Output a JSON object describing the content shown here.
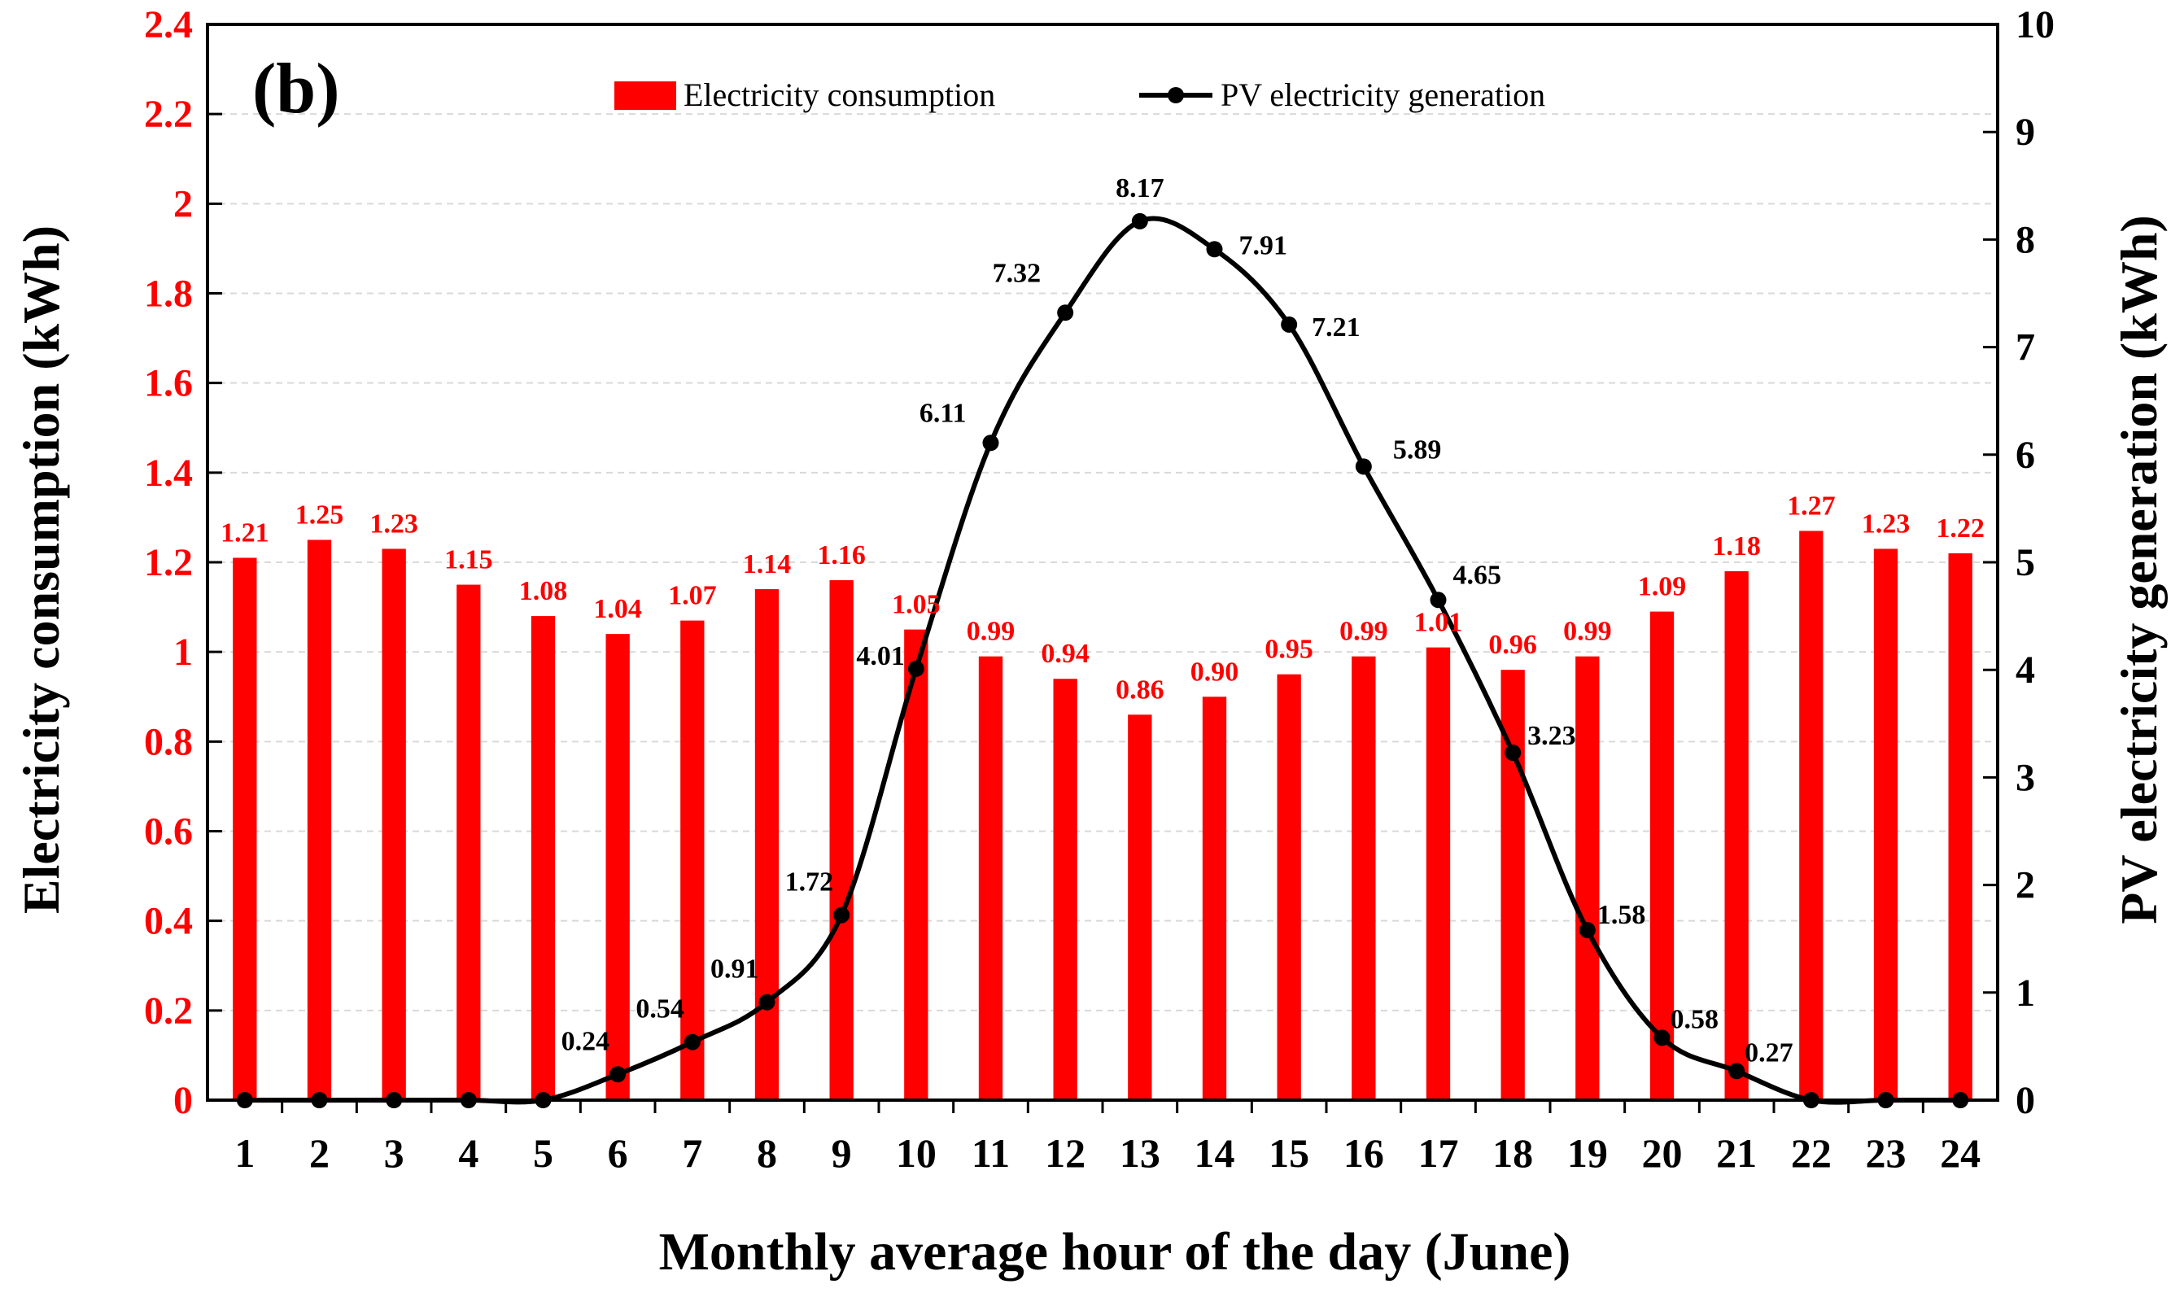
{
  "chart_data": {
    "type": "bar+line",
    "panel_label": "(b)",
    "categories": [
      "1",
      "2",
      "3",
      "4",
      "5",
      "6",
      "7",
      "8",
      "9",
      "10",
      "11",
      "12",
      "13",
      "14",
      "15",
      "16",
      "17",
      "18",
      "19",
      "20",
      "21",
      "22",
      "23",
      "24"
    ],
    "series": [
      {
        "name": "Electricity consumption",
        "type": "bar",
        "axis": "left",
        "values": [
          1.21,
          1.25,
          1.23,
          1.15,
          1.08,
          1.04,
          1.07,
          1.14,
          1.16,
          1.05,
          0.99,
          0.94,
          0.86,
          0.9,
          0.95,
          0.99,
          1.01,
          0.96,
          0.99,
          1.09,
          1.18,
          1.27,
          1.23,
          1.22
        ],
        "labels": [
          "1.21",
          "1.25",
          "1.23",
          "1.15",
          "1.08",
          "1.04",
          "1.07",
          "1.14",
          "1.16",
          "1.05",
          "0.99",
          "0.94",
          "0.86",
          "0.90",
          "0.95",
          "0.99",
          "1.01",
          "0.96",
          "0.99",
          "1.09",
          "1.18",
          "1.27",
          "1.23",
          "1.22"
        ]
      },
      {
        "name": "PV electricity generation",
        "type": "line",
        "axis": "right",
        "values": [
          0,
          0,
          0,
          0,
          0,
          0.24,
          0.54,
          0.91,
          1.72,
          4.01,
          6.11,
          7.32,
          8.17,
          7.91,
          7.21,
          5.89,
          4.65,
          3.23,
          1.58,
          0.58,
          0.27,
          0,
          0,
          0
        ],
        "labels": [
          "",
          "",
          "",
          "",
          "",
          "0.24",
          "0.54",
          "0.91",
          "1.72",
          "4.01",
          "6.11",
          "7.32",
          "8.17",
          "7.91",
          "7.21",
          "5.89",
          "4.65",
          "3.23",
          "1.58",
          "0.58",
          "0.27",
          "",
          "",
          ""
        ]
      }
    ],
    "xlabel": "Monthly average hour of the day (June)",
    "ylabel_left": "Electricity consumption (kWh)",
    "ylabel_right": "PV electricity generation (kWh)",
    "ylim_left": [
      0,
      2.4
    ],
    "yticks_left": [
      0,
      0.2,
      0.4,
      0.6,
      0.8,
      1,
      1.2,
      1.4,
      1.6,
      1.8,
      2,
      2.2,
      2.4
    ],
    "ytick_labels_left": [
      "0",
      "0.2",
      "0.4",
      "0.6",
      "0.8",
      "1",
      "1.2",
      "1.4",
      "1.6",
      "1.8",
      "2",
      "2.2",
      "2.4"
    ],
    "ylim_right": [
      0,
      10
    ],
    "yticks_right": [
      0,
      1,
      2,
      3,
      4,
      5,
      6,
      7,
      8,
      9,
      10
    ],
    "ytick_labels_right": [
      "0",
      "1",
      "2",
      "3",
      "4",
      "5",
      "6",
      "7",
      "8",
      "9",
      "10"
    ],
    "grid": true,
    "legend_position": "top-center"
  },
  "colors": {
    "bar": "#ff0000",
    "line": "#000000",
    "left_axis_text": "#ff0000",
    "right_axis_text": "#000000",
    "grid": "#d9d9d9"
  }
}
